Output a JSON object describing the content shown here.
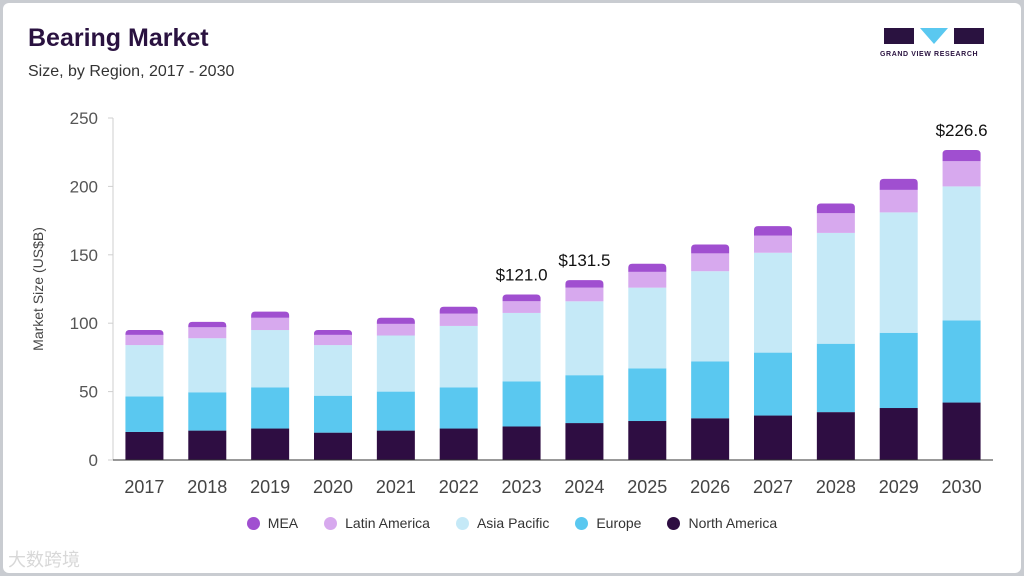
{
  "header": {
    "title": "Bearing Market",
    "subtitle": "Size, by Region, 2017 - 2030",
    "logo_text": "GRAND VIEW RESEARCH"
  },
  "watermark": "大数跨境",
  "chart_data": {
    "type": "bar",
    "stacked": true,
    "ylabel": "Market Size (US$B)",
    "ylim": [
      0,
      250
    ],
    "yticks": [
      0,
      50,
      100,
      150,
      200,
      250
    ],
    "grid": false,
    "legend_position": "bottom",
    "categories": [
      "2017",
      "2018",
      "2019",
      "2020",
      "2021",
      "2022",
      "2023",
      "2024",
      "2025",
      "2026",
      "2027",
      "2028",
      "2029",
      "2030"
    ],
    "series": [
      {
        "name": "North America",
        "color": "#2e0d42",
        "values": [
          20.5,
          21.5,
          23.0,
          20.0,
          21.5,
          23.0,
          24.5,
          27.0,
          28.5,
          30.5,
          32.5,
          35.0,
          38.0,
          42.0
        ]
      },
      {
        "name": "Europe",
        "color": "#5ac8f0",
        "values": [
          26.0,
          28.0,
          30.0,
          27.0,
          28.5,
          30.0,
          33.0,
          35.0,
          38.5,
          41.5,
          46.0,
          50.0,
          55.0,
          60.0
        ]
      },
      {
        "name": "Asia Pacific",
        "color": "#c5e9f7",
        "values": [
          37.5,
          39.5,
          42.0,
          37.0,
          41.0,
          45.0,
          50.0,
          54.0,
          59.0,
          66.0,
          73.0,
          81.0,
          88.0,
          98.0
        ]
      },
      {
        "name": "Latin America",
        "color": "#d7a9ee",
        "values": [
          7.5,
          8.0,
          9.0,
          7.5,
          8.5,
          9.0,
          8.5,
          10.0,
          11.5,
          13.0,
          12.5,
          14.5,
          16.5,
          18.5
        ]
      },
      {
        "name": "MEA",
        "color": "#a04fd0",
        "values": [
          3.5,
          4.0,
          4.5,
          3.5,
          4.5,
          5.0,
          5.0,
          5.5,
          6.0,
          6.5,
          7.0,
          7.0,
          8.0,
          8.1
        ]
      }
    ],
    "annotations": [
      {
        "category": "2023",
        "label": "$121.0"
      },
      {
        "category": "2024",
        "label": "$131.5"
      },
      {
        "category": "2030",
        "label": "$226.6"
      }
    ]
  }
}
